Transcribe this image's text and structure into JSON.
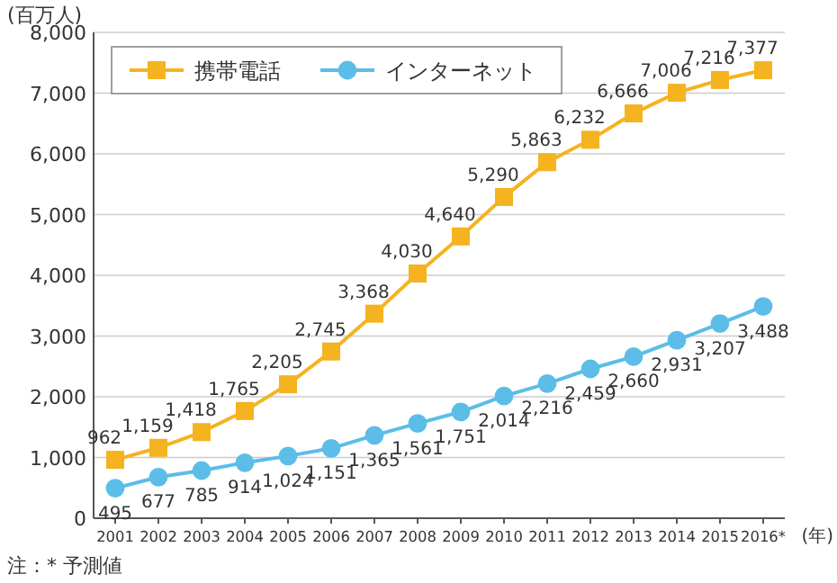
{
  "chart_data": {
    "type": "line",
    "ylabel": "(百万人)",
    "xlabel": "(年)",
    "categories": [
      "2001",
      "2002",
      "2003",
      "2004",
      "2005",
      "2006",
      "2007",
      "2008",
      "2009",
      "2010",
      "2011",
      "2012",
      "2013",
      "2014",
      "2015",
      "2016*"
    ],
    "series": [
      {
        "name": "携帯電話",
        "color": "#f5b31f",
        "marker": "square",
        "values": [
          962,
          1159,
          1418,
          1765,
          2205,
          2745,
          3368,
          4030,
          4640,
          5290,
          5863,
          6232,
          6666,
          7006,
          7216,
          7377
        ],
        "value_labels": [
          "962",
          "1,159",
          "1,418",
          "1,765",
          "2,205",
          "2,745",
          "3,368",
          "4,030",
          "4,640",
          "5,290",
          "5,863",
          "6,232",
          "6,666",
          "7,006",
          "7,216",
          "7,377"
        ]
      },
      {
        "name": "インターネット",
        "color": "#5bbde8",
        "marker": "circle",
        "values": [
          495,
          677,
          785,
          914,
          1024,
          1151,
          1365,
          1561,
          1751,
          2014,
          2216,
          2459,
          2660,
          2931,
          3207,
          3488
        ],
        "value_labels": [
          "495",
          "677",
          "785",
          "914",
          "1,024",
          "1,151",
          "1,365",
          "1,561",
          "1,751",
          "2,014",
          "2,216",
          "2,459",
          "2,660",
          "2,931",
          "3,207",
          "3,488"
        ]
      }
    ],
    "ylim": [
      0,
      8000
    ],
    "yticks": [
      {
        "value": 0,
        "label": "0"
      },
      {
        "value": 1000,
        "label": "1,000"
      },
      {
        "value": 2000,
        "label": "2,000"
      },
      {
        "value": 3000,
        "label": "3,000"
      },
      {
        "value": 4000,
        "label": "4,000"
      },
      {
        "value": 5000,
        "label": "5,000"
      },
      {
        "value": 6000,
        "label": "6,000"
      },
      {
        "value": 7000,
        "label": "7,000"
      },
      {
        "value": 8000,
        "label": "8,000"
      }
    ],
    "grid": "y",
    "legend": "top left",
    "line_style": "solid",
    "annotations": [
      "注：* 予測値"
    ]
  }
}
